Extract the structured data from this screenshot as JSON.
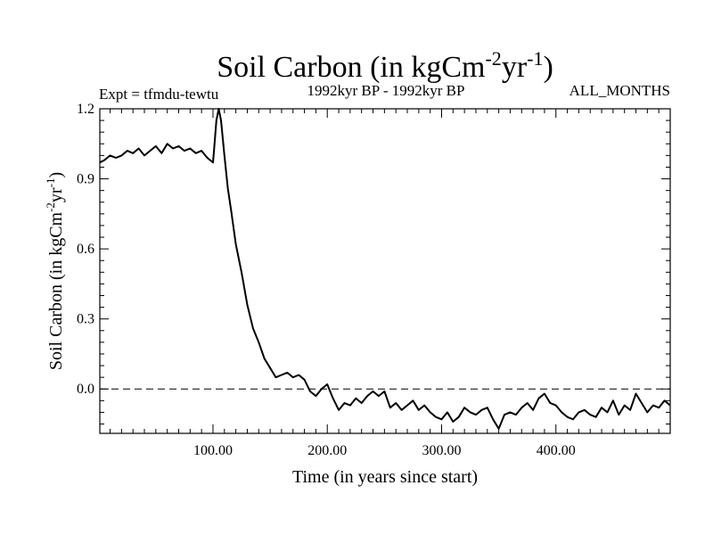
{
  "chart_data": {
    "type": "line",
    "title": "Soil Carbon (in kgCm",
    "title_unit_sup1": "-2",
    "title_unit_mid": "yr",
    "title_unit_sup2": "-1",
    "title_close": ")",
    "experiment": "Expt = tfmdu-tewtu",
    "period": "1992kyr BP - 1992kyr BP",
    "months": "ALL_MONTHS",
    "xlabel": "Time (in years since start)",
    "ylabel_main": "Soil Carbon (in kgCm",
    "ylabel_sup1": "-2",
    "ylabel_mid": "yr",
    "ylabel_sup2": "-1",
    "ylabel_close": ")",
    "xlim": [
      1,
      500
    ],
    "ylim": [
      -0.19,
      1.2
    ],
    "xticks": [
      {
        "value": 100,
        "label": "100.00"
      },
      {
        "value": 200,
        "label": "200.00"
      },
      {
        "value": 300,
        "label": "300.00"
      },
      {
        "value": 400,
        "label": "400.00"
      }
    ],
    "yticks": [
      {
        "value": 1.2,
        "label": "1.2"
      },
      {
        "value": 0.9,
        "label": "0.9"
      },
      {
        "value": 0.6,
        "label": "0.6"
      },
      {
        "value": 0.3,
        "label": "0.3"
      },
      {
        "value": 0.0,
        "label": "0.0"
      }
    ],
    "reference_line": 0.0,
    "series": [
      {
        "name": "Soil Carbon",
        "x": [
          1,
          5,
          10,
          15,
          20,
          25,
          30,
          35,
          40,
          45,
          50,
          55,
          60,
          65,
          70,
          75,
          80,
          85,
          90,
          95,
          100,
          101,
          103,
          105,
          107,
          110,
          113,
          116,
          120,
          125,
          130,
          135,
          140,
          145,
          150,
          155,
          160,
          165,
          170,
          175,
          180,
          185,
          190,
          195,
          200,
          205,
          210,
          215,
          220,
          225,
          230,
          235,
          240,
          245,
          250,
          255,
          260,
          265,
          270,
          275,
          280,
          285,
          290,
          295,
          300,
          305,
          310,
          315,
          320,
          325,
          330,
          335,
          340,
          345,
          350,
          355,
          360,
          365,
          370,
          375,
          380,
          385,
          390,
          395,
          400,
          405,
          410,
          415,
          420,
          425,
          430,
          435,
          440,
          445,
          450,
          455,
          460,
          465,
          470,
          475,
          480,
          485,
          490,
          495,
          500
        ],
        "y": [
          0.97,
          0.98,
          1.0,
          0.99,
          1.0,
          1.02,
          1.01,
          1.03,
          1.0,
          1.02,
          1.04,
          1.01,
          1.05,
          1.03,
          1.04,
          1.02,
          1.03,
          1.01,
          1.02,
          0.99,
          0.97,
          1.03,
          1.15,
          1.2,
          1.15,
          1.0,
          0.86,
          0.76,
          0.62,
          0.5,
          0.36,
          0.26,
          0.2,
          0.13,
          0.09,
          0.05,
          0.06,
          0.07,
          0.05,
          0.06,
          0.04,
          -0.01,
          -0.03,
          0.0,
          0.02,
          -0.04,
          -0.09,
          -0.06,
          -0.07,
          -0.04,
          -0.06,
          -0.03,
          -0.01,
          -0.03,
          -0.01,
          -0.08,
          -0.06,
          -0.09,
          -0.07,
          -0.05,
          -0.09,
          -0.07,
          -0.1,
          -0.12,
          -0.13,
          -0.1,
          -0.14,
          -0.12,
          -0.08,
          -0.1,
          -0.11,
          -0.09,
          -0.08,
          -0.13,
          -0.17,
          -0.11,
          -0.1,
          -0.11,
          -0.08,
          -0.06,
          -0.09,
          -0.04,
          -0.02,
          -0.06,
          -0.07,
          -0.1,
          -0.12,
          -0.13,
          -0.1,
          -0.09,
          -0.11,
          -0.12,
          -0.08,
          -0.1,
          -0.05,
          -0.11,
          -0.07,
          -0.09,
          -0.02,
          -0.06,
          -0.1,
          -0.07,
          -0.08,
          -0.05,
          -0.07
        ]
      }
    ]
  }
}
